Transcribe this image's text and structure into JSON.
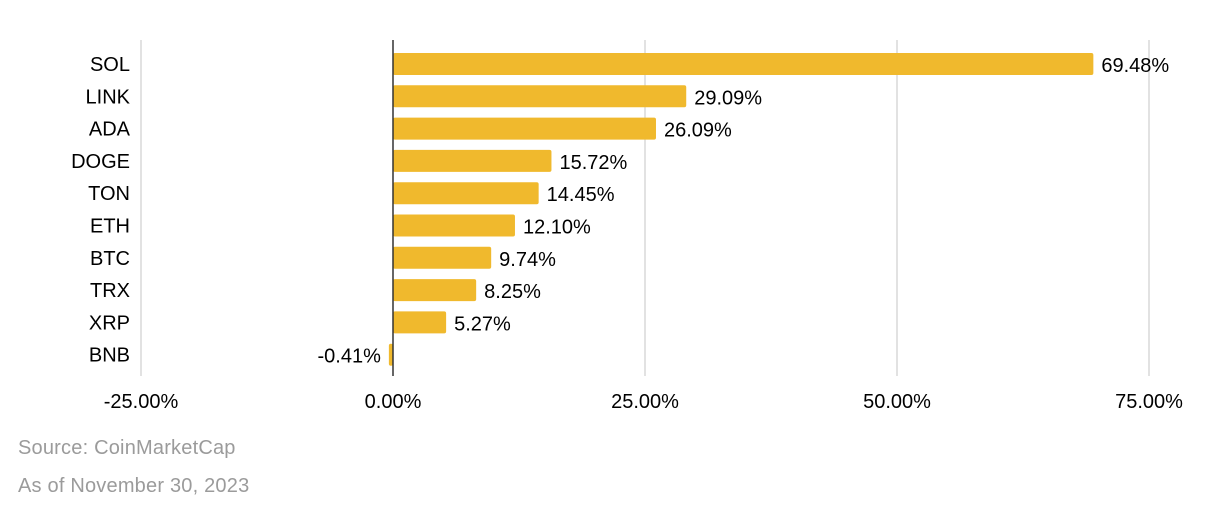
{
  "chart_data": {
    "type": "bar",
    "orientation": "horizontal",
    "categories": [
      "SOL",
      "LINK",
      "ADA",
      "DOGE",
      "TON",
      "ETH",
      "BTC",
      "TRX",
      "XRP",
      "BNB"
    ],
    "values": [
      69.48,
      29.09,
      26.09,
      15.72,
      14.45,
      12.1,
      9.74,
      8.25,
      5.27,
      -0.41
    ],
    "value_labels": [
      "69.48%",
      "29.09%",
      "26.09%",
      "15.72%",
      "14.45%",
      "12.10%",
      "9.74%",
      "8.25%",
      "5.27%",
      "-0.41%"
    ],
    "xticks": [
      -25,
      0,
      25,
      50,
      75
    ],
    "xtick_labels": [
      "-25.00%",
      "0.00%",
      "25.00%",
      "50.00%",
      "75.00%"
    ],
    "xlim": [
      -25,
      75
    ],
    "title": "",
    "xlabel": "",
    "ylabel": "",
    "grid": "vertical",
    "bar_color": "#f0b92d"
  },
  "footer": {
    "source": "Source: CoinMarketCap",
    "as_of": "As of November 30, 2023"
  }
}
